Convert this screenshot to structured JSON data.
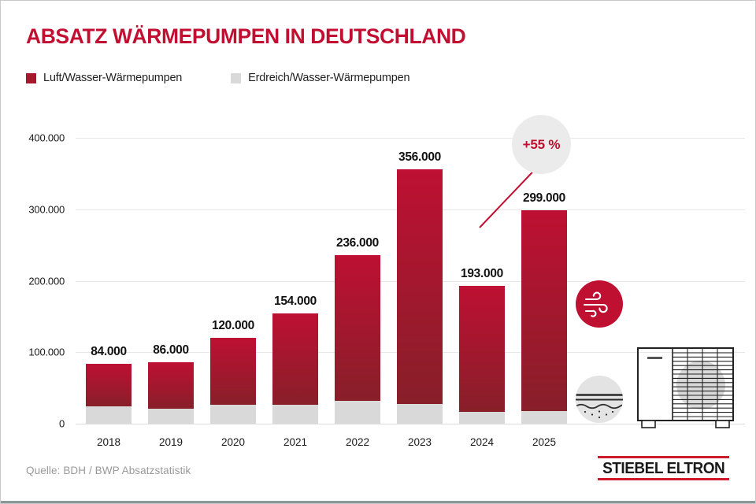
{
  "colors": {
    "brand_red": "#c20f31",
    "bar_red_top": "#be1032",
    "bar_red_bottom": "#871f29",
    "bar_gray": "#d9d9d9",
    "legend_red": "#a5182e",
    "annotation_bg": "#ebebeb",
    "wind_circle_red": "#c01031",
    "ground_circle_gray": "#e3e3e3"
  },
  "header": {
    "title": "ABSATZ WÄRMEPUMPEN IN DEUTSCHLAND"
  },
  "legend": {
    "items": [
      {
        "label": "Luft/Wasser-Wärmepumpen",
        "color": "#a5182e"
      },
      {
        "label": "Erdreich/Wasser-Wärmepumpen",
        "color": "#d9d9d9"
      }
    ]
  },
  "chart_data": {
    "type": "bar",
    "stacked": true,
    "categories": [
      "2018",
      "2019",
      "2020",
      "2021",
      "2022",
      "2023",
      "2024",
      "2025"
    ],
    "totals": [
      84000,
      86000,
      120000,
      154000,
      236000,
      356000,
      193000,
      299000
    ],
    "total_labels": [
      "84.000",
      "86.000",
      "120.000",
      "154.000",
      "236.000",
      "356.000",
      "193.000",
      "299.000"
    ],
    "series": [
      {
        "name": "Luft/Wasser-Wärmepumpen",
        "values": [
          60000,
          65000,
          94000,
          127000,
          204000,
          328000,
          177000,
          281000
        ]
      },
      {
        "name": "Erdreich/Wasser-Wärmepumpen",
        "values": [
          24000,
          21000,
          26000,
          27000,
          32000,
          28000,
          16000,
          18000
        ]
      }
    ],
    "ylim": [
      0,
      400000
    ],
    "yticks": [
      {
        "value": 400000,
        "label": "400.000"
      },
      {
        "value": 300000,
        "label": "300.000"
      },
      {
        "value": 200000,
        "label": "200.000"
      },
      {
        "value": 100000,
        "label": "100.000"
      },
      {
        "value": 0,
        "label": "0"
      }
    ],
    "grid": true,
    "legend_position": "top-left",
    "annotation": {
      "text": "+55 %",
      "from_category": "2024",
      "to_category": "2025"
    }
  },
  "footer": {
    "source": "Quelle: BDH / BWP Absatzstatistik",
    "brand": "STIEBEL ELTRON"
  }
}
